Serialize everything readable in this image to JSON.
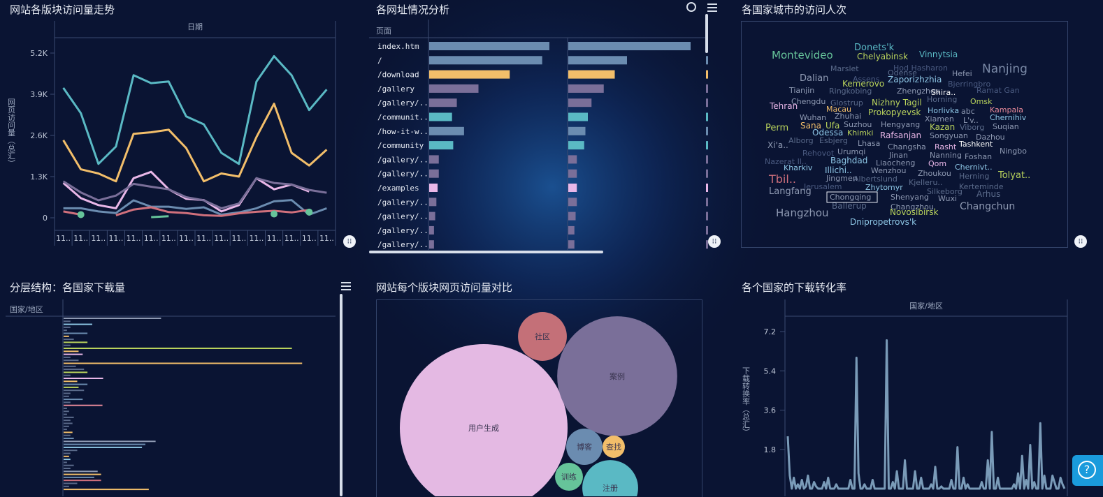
{
  "panels": {
    "trend": {
      "title": "网站各版块访问量走势"
    },
    "urls": {
      "title": "各网址情况分析"
    },
    "cloud": {
      "title": "各国家城市的访问人次"
    },
    "hier": {
      "title": "分层结构：各国家下载量"
    },
    "bubble": {
      "title": "网站每个版块网页访问量对比"
    },
    "conv": {
      "title": "各个国家的下载转化率"
    }
  },
  "chart_data": [
    {
      "id": "trend",
      "type": "line",
      "title": "网站各版块访问量走势",
      "xlabel": "日期",
      "ylabel": "网页访问量（总汇）",
      "yticks": [
        "5.2K",
        "3.9K",
        "2.6K",
        "1.3K",
        "0"
      ],
      "ylim": [
        0,
        5600
      ],
      "x_tick_label": "11..",
      "x_count": 16,
      "series": [
        {
          "color": "#5ab9c4",
          "values": [
            4100,
            3300,
            1700,
            2250,
            4500,
            4250,
            4300,
            3200,
            2950,
            2050,
            1700,
            4300,
            5100,
            4500,
            3400,
            4050
          ]
        },
        {
          "color": "#f2be6a",
          "values": [
            2450,
            1530,
            1400,
            1150,
            2650,
            2700,
            2780,
            2200,
            1150,
            1400,
            1300,
            2550,
            3600,
            2050,
            1650,
            2150
          ]
        },
        {
          "color": "#e9b7e8",
          "values": [
            1100,
            620,
            400,
            300,
            1250,
            1450,
            900,
            600,
            560,
            200,
            400,
            1250,
            900,
            1050,
            830,
            null
          ]
        },
        {
          "color": "#7a6f99",
          "values": [
            1150,
            800,
            550,
            700,
            1070,
            980,
            900,
            650,
            550,
            300,
            450,
            1250,
            1100,
            1050,
            880,
            790
          ]
        },
        {
          "color": "#6b8cb0",
          "values": [
            300,
            300,
            200,
            150,
            550,
            350,
            350,
            280,
            330,
            100,
            170,
            300,
            520,
            560,
            100,
            300
          ]
        },
        {
          "color": "#d0707c",
          "values": [
            200,
            100,
            null,
            80,
            260,
            330,
            180,
            150,
            80,
            60,
            140,
            190,
            220,
            170,
            250,
            null
          ]
        },
        {
          "color": "#66c49a",
          "values": [
            null,
            100,
            null,
            null,
            null,
            20,
            50,
            null,
            50,
            null,
            null,
            null,
            120,
            null,
            180,
            null
          ]
        }
      ]
    },
    {
      "id": "urls",
      "type": "bar",
      "title": "各网址情况分析",
      "column_header": "页面",
      "categories": [
        "index.htm",
        "/",
        "/download",
        "/gallery",
        "/gallery/..",
        "/communit..",
        "/how-it-w..",
        "/community",
        "/gallery/..",
        "/gallery/..",
        "/examples",
        "/gallery/..",
        "/gallery/..",
        "/gallery/..",
        "/gallery/.."
      ],
      "colors": [
        "#6b8cb0",
        "#6b8cb0",
        "#f2be6a",
        "#7a6f99",
        "#7a6f99",
        "#5ab9c4",
        "#6b8cb0",
        "#5ab9c4",
        "#7a6f99",
        "#7a6f99",
        "#e9b7e8",
        "#7a6f99",
        "#7a6f99",
        "#7a6f99",
        "#7a6f99"
      ],
      "series": [
        {
          "values": [
            100,
            94,
            67,
            41,
            23,
            19,
            29,
            20,
            8,
            8,
            7,
            6,
            5,
            4,
            4
          ]
        },
        {
          "values": [
            100,
            48,
            38,
            29,
            19,
            16,
            14,
            13,
            7,
            7,
            7,
            7,
            6,
            5,
            5
          ]
        }
      ]
    },
    {
      "id": "cloud",
      "type": "table",
      "title": "各国家城市的访问人次",
      "words": [
        {
          "t": "Donets'k",
          "c": "#5ab9c4",
          "s": 13
        },
        {
          "t": "Montevideo",
          "c": "#66c49a",
          "s": 15
        },
        {
          "t": "Chelyabinsk",
          "c": "#b9d35c",
          "s": 12
        },
        {
          "t": "Vinnytsia",
          "c": "#5ab9c4",
          "s": 12
        },
        {
          "t": "Marslet",
          "c": "#5a6a8a",
          "s": 11
        },
        {
          "t": "Hod Hasharon",
          "c": "#4a5a80",
          "s": 11
        },
        {
          "t": "Nanjing",
          "c": "#7a89a6",
          "s": 17
        },
        {
          "t": "Dalian",
          "c": "#8e99b2",
          "s": 13
        },
        {
          "t": "Odense",
          "c": "#5a6a8a",
          "s": 11
        },
        {
          "t": "Hefei",
          "c": "#8e99b2",
          "s": 11
        },
        {
          "t": "Assens",
          "c": "#4a5a80",
          "s": 11
        },
        {
          "t": "Zaporizhzhia",
          "c": "#8ec7e6",
          "s": 12
        },
        {
          "t": "Kemerovo",
          "c": "#b9d35c",
          "s": 12
        },
        {
          "t": "Bjerringbro",
          "c": "#4a5a80",
          "s": 11
        },
        {
          "t": "Tianjin",
          "c": "#8e99b2",
          "s": 11
        },
        {
          "t": "Ringkobing",
          "c": "#5a6a8a",
          "s": 11
        },
        {
          "t": "Zhengzhou",
          "c": "#8e99b2",
          "s": 11
        },
        {
          "t": "Shira..",
          "c": "#ffffff",
          "s": 11
        },
        {
          "t": "Ramat Gan",
          "c": "#4a5a80",
          "s": 11
        },
        {
          "t": "Chengdu",
          "c": "#8e99b2",
          "s": 11
        },
        {
          "t": "Glostrup",
          "c": "#5a6a8a",
          "s": 11
        },
        {
          "t": "Nizhny Tagil",
          "c": "#b9d35c",
          "s": 12
        },
        {
          "t": "Horning",
          "c": "#5a6a8a",
          "s": 11
        },
        {
          "t": "Omsk",
          "c": "#b9d35c",
          "s": 11
        },
        {
          "t": "Tehran",
          "c": "#e9b7e8",
          "s": 12
        },
        {
          "t": "Macau",
          "c": "#f2be6a",
          "s": 11
        },
        {
          "t": "Prokopyevsk",
          "c": "#b9d35c",
          "s": 12
        },
        {
          "t": "Horlivka",
          "c": "#8ec7e6",
          "s": 11
        },
        {
          "t": "abc",
          "c": "#8e99b2",
          "s": 11
        },
        {
          "t": "Kampala",
          "c": "#e88a9a",
          "s": 11
        },
        {
          "t": "Wuhan",
          "c": "#8e99b2",
          "s": 11
        },
        {
          "t": "Zhuhai",
          "c": "#8e99b2",
          "s": 11
        },
        {
          "t": "Xiamen",
          "c": "#8e99b2",
          "s": 11
        },
        {
          "t": "L'v..",
          "c": "#8e99b2",
          "s": 11
        },
        {
          "t": "Chernihiv",
          "c": "#8ec7e6",
          "s": 11
        },
        {
          "t": "Perm",
          "c": "#b9d35c",
          "s": 13
        },
        {
          "t": "Sana",
          "c": "#f2be6a",
          "s": 12
        },
        {
          "t": "Ufa",
          "c": "#b9d35c",
          "s": 12
        },
        {
          "t": "Suzhou",
          "c": "#8e99b2",
          "s": 11
        },
        {
          "t": "Hengyang",
          "c": "#8e99b2",
          "s": 11
        },
        {
          "t": "Kazan",
          "c": "#b9d35c",
          "s": 12
        },
        {
          "t": "Viborg",
          "c": "#5a6a8a",
          "s": 11
        },
        {
          "t": "Suqian",
          "c": "#8e99b2",
          "s": 11
        },
        {
          "t": "Odessa",
          "c": "#8ec7e6",
          "s": 12
        },
        {
          "t": "Khimki",
          "c": "#b9d35c",
          "s": 11
        },
        {
          "t": "Rafsanjan",
          "c": "#e9b7e8",
          "s": 12
        },
        {
          "t": "Songyuan",
          "c": "#8e99b2",
          "s": 11
        },
        {
          "t": "Dazhou",
          "c": "#8e99b2",
          "s": 11
        },
        {
          "t": "Alborg",
          "c": "#5a6a8a",
          "s": 11
        },
        {
          "t": "Esbjerg",
          "c": "#5a6a8a",
          "s": 11
        },
        {
          "t": "Lhasa",
          "c": "#8e99b2",
          "s": 11
        },
        {
          "t": "Changsha",
          "c": "#8e99b2",
          "s": 11
        },
        {
          "t": "Rasht",
          "c": "#e9b7e8",
          "s": 11
        },
        {
          "t": "Tashkent",
          "c": "#ffffff",
          "s": 11
        },
        {
          "t": "Xi'a..",
          "c": "#8e99b2",
          "s": 12
        },
        {
          "t": "Rehovot",
          "c": "#4a5a80",
          "s": 11
        },
        {
          "t": "Urumqi",
          "c": "#8e99b2",
          "s": 11
        },
        {
          "t": "Jinan",
          "c": "#8e99b2",
          "s": 11
        },
        {
          "t": "Nanning",
          "c": "#8e99b2",
          "s": 11
        },
        {
          "t": "Foshan",
          "c": "#8e99b2",
          "s": 11
        },
        {
          "t": "Ningbo",
          "c": "#8e99b2",
          "s": 11
        },
        {
          "t": "Nazerat Il..",
          "c": "#4a5a80",
          "s": 11
        },
        {
          "t": "Baghdad",
          "c": "#8ec7e6",
          "s": 12
        },
        {
          "t": "Liaocheng",
          "c": "#8e99b2",
          "s": 11
        },
        {
          "t": "Qom",
          "c": "#e9b7e8",
          "s": 11
        },
        {
          "t": "Kharkiv",
          "c": "#8ec7e6",
          "s": 11
        },
        {
          "t": "Illichi..",
          "c": "#8ec7e6",
          "s": 12
        },
        {
          "t": "Wenzhou",
          "c": "#8e99b2",
          "s": 11
        },
        {
          "t": "Zhoukou",
          "c": "#8e99b2",
          "s": 11
        },
        {
          "t": "Chernivt..",
          "c": "#8ec7e6",
          "s": 11
        },
        {
          "t": "Tolyat..",
          "c": "#b9d35c",
          "s": 13
        },
        {
          "t": "Tbil..",
          "c": "#d0707c",
          "s": 16
        },
        {
          "t": "Jingmen",
          "c": "#8e99b2",
          "s": 11
        },
        {
          "t": "Albertslund",
          "c": "#5a6a8a",
          "s": 11
        },
        {
          "t": "Kjelleru..",
          "c": "#5a6a8a",
          "s": 11
        },
        {
          "t": "Herning",
          "c": "#5a6a8a",
          "s": 11
        },
        {
          "t": "Jerusalem",
          "c": "#4a5a80",
          "s": 11
        },
        {
          "t": "Zhytomyr",
          "c": "#8ec7e6",
          "s": 11
        },
        {
          "t": "Kerteminde",
          "c": "#5a6a8a",
          "s": 11
        },
        {
          "t": "Langfang",
          "c": "#8e99b2",
          "s": 13
        },
        {
          "t": "Silkeborg",
          "c": "#5a6a8a",
          "s": 11
        },
        {
          "t": "Arhus",
          "c": "#5a6a8a",
          "s": 12
        },
        {
          "t": "Chongqing",
          "c": "#8e99b2",
          "s": 11
        },
        {
          "t": "Shenyang",
          "c": "#8e99b2",
          "s": 11
        },
        {
          "t": "Wuxi",
          "c": "#8e99b2",
          "s": 11
        },
        {
          "t": "Ballerup",
          "c": "#5a6a8a",
          "s": 12
        },
        {
          "t": "Changzhou",
          "c": "#8e99b2",
          "s": 11
        },
        {
          "t": "Changchun",
          "c": "#8e99b2",
          "s": 14
        },
        {
          "t": "Hangzhou",
          "c": "#8e99b2",
          "s": 15
        },
        {
          "t": "Novosibirsk",
          "c": "#b9d35c",
          "s": 12
        },
        {
          "t": "Dnipropetrovs'k",
          "c": "#8ec7e6",
          "s": 12
        }
      ]
    },
    {
      "id": "hier",
      "type": "bar",
      "title": "分层结构：各国家下载量",
      "column_header": "国家/地区",
      "xlim": [
        0,
        400
      ],
      "bars": [
        {
          "v": 143,
          "c": "#8e99b2"
        },
        {
          "v": 10,
          "c": "#5a6a8a"
        },
        {
          "v": 42,
          "c": "#8ec7e6"
        },
        {
          "v": 10,
          "c": "#5a6a8a"
        },
        {
          "v": 5,
          "c": "#5a6a8a"
        },
        {
          "v": 35,
          "c": "#6b8cb0"
        },
        {
          "v": 8,
          "c": "#f2be6a"
        },
        {
          "v": 15,
          "c": "#5a6a8a"
        },
        {
          "v": 35,
          "c": "#b9d35c"
        },
        {
          "v": 10,
          "c": "#5a6a8a"
        },
        {
          "v": 335,
          "c": "#b9d35c"
        },
        {
          "v": 22,
          "c": "#f2be6a"
        },
        {
          "v": 28,
          "c": "#e9b7e8"
        },
        {
          "v": 10,
          "c": "#5a6a8a"
        },
        {
          "v": 22,
          "c": "#5a6a8a"
        },
        {
          "v": 350,
          "c": "#f2be6a"
        },
        {
          "v": 18,
          "c": "#5a6a8a"
        },
        {
          "v": 30,
          "c": "#5a6a8a"
        },
        {
          "v": 35,
          "c": "#b9d35c"
        },
        {
          "v": 10,
          "c": "#5a6a8a"
        },
        {
          "v": 58,
          "c": "#e9b7e8"
        },
        {
          "v": 20,
          "c": "#f2be6a"
        },
        {
          "v": 35,
          "c": "#6b8cb0"
        },
        {
          "v": 22,
          "c": "#b9d35c"
        },
        {
          "v": 30,
          "c": "#5a6a8a"
        },
        {
          "v": 10,
          "c": "#5a6a8a"
        },
        {
          "v": 8,
          "c": "#5a6a8a"
        },
        {
          "v": 28,
          "c": "#6b8cb0"
        },
        {
          "v": 10,
          "c": "#5a6a8a"
        },
        {
          "v": 57,
          "c": "#e88a9a"
        },
        {
          "v": 5,
          "c": "#5a6a8a"
        },
        {
          "v": 8,
          "c": "#5a6a8a"
        },
        {
          "v": 5,
          "c": "#5a6a8a"
        },
        {
          "v": 15,
          "c": "#5a6a8a"
        },
        {
          "v": 10,
          "c": "#5a6a8a"
        },
        {
          "v": 13,
          "c": "#5a6a8a"
        },
        {
          "v": 8,
          "c": "#5a6a8a"
        },
        {
          "v": 5,
          "c": "#5a6a8a"
        },
        {
          "v": 13,
          "c": "#f2be6a"
        },
        {
          "v": 10,
          "c": "#5a6a8a"
        },
        {
          "v": 15,
          "c": "#6b8cb0"
        },
        {
          "v": 135,
          "c": "#8e99b2"
        },
        {
          "v": 120,
          "c": "#6b8cb0"
        },
        {
          "v": 115,
          "c": "#8ec7e6"
        },
        {
          "v": 20,
          "c": "#5a6a8a"
        },
        {
          "v": 10,
          "c": "#5a6a8a"
        },
        {
          "v": 8,
          "c": "#f2be6a"
        },
        {
          "v": 10,
          "c": "#8ec7e6"
        },
        {
          "v": 5,
          "c": "#5a6a8a"
        },
        {
          "v": 15,
          "c": "#5a6a8a"
        },
        {
          "v": 10,
          "c": "#5a6a8a"
        },
        {
          "v": 50,
          "c": "#8e99b2"
        },
        {
          "v": 55,
          "c": "#f2be6a"
        },
        {
          "v": 45,
          "c": "#6b8cb0"
        },
        {
          "v": 55,
          "c": "#d0707c"
        },
        {
          "v": 20,
          "c": "#5a6a8a"
        },
        {
          "v": 8,
          "c": "#5a6a8a"
        },
        {
          "v": 125,
          "c": "#f2be6a"
        }
      ]
    },
    {
      "id": "bubble",
      "type": "scatter",
      "title": "网站每个版块网页访问量对比",
      "bubbles": [
        {
          "label": "用户生成",
          "value": 14450,
          "color": "#e4b9e3"
        },
        {
          "label": "案例",
          "value": 7400,
          "color": "#7a6f99"
        },
        {
          "label": "社区",
          "value": 1225,
          "color": "#c47078"
        },
        {
          "label": "博客",
          "value": 676,
          "color": "#6b8cb0"
        },
        {
          "label": "查找",
          "value": 256,
          "color": "#f2be6a"
        },
        {
          "label": "训练",
          "value": 400,
          "color": "#66c49a"
        },
        {
          "label": "注册",
          "value": 1600,
          "color": "#5ab9c4"
        }
      ]
    },
    {
      "id": "conv",
      "type": "line",
      "title": "各个国家的下载转化率",
      "xlabel": "国家/地区",
      "ylabel": "下载转换率（总汇）",
      "yticks": [
        "7.2",
        "5.4",
        "3.6",
        "1.8"
      ],
      "ylim": [
        0,
        7.8
      ],
      "color": "#7a9bb8",
      "values": [
        2.4,
        0.6,
        0,
        0.5,
        0,
        0.2,
        0,
        0.4,
        0,
        0.1,
        0.6,
        0,
        0,
        0.3,
        0.1,
        0,
        0,
        0,
        0.3,
        0,
        0.5,
        0,
        0,
        0,
        0.2,
        0,
        0,
        0,
        0,
        0,
        0,
        0.4,
        0,
        0,
        6.0,
        0.7,
        0,
        0,
        0.2,
        0,
        0,
        0,
        0.4,
        0,
        0,
        0,
        0,
        0,
        0,
        6.8,
        0,
        0,
        0.3,
        0,
        0.8,
        0,
        0,
        0,
        1.3,
        0,
        0,
        0,
        0,
        0.8,
        0,
        0,
        0.5,
        0,
        0,
        0,
        0,
        0.2,
        0,
        1.0,
        0,
        0,
        0.1,
        0,
        0,
        0,
        0,
        0.4,
        0,
        0,
        1.9,
        0,
        0,
        0.5,
        0,
        0.2,
        0,
        0,
        0,
        0,
        0,
        0,
        0.3,
        0,
        0,
        1.3,
        0,
        2.6,
        0,
        0,
        0.5,
        0,
        0,
        0,
        0,
        0,
        0,
        0,
        0.2,
        0,
        0.7,
        0,
        1.5,
        0,
        0.4,
        0,
        2.0,
        0,
        0.3,
        0,
        0,
        3.0,
        0,
        0.6,
        0,
        0,
        0,
        0.6,
        0.3,
        0,
        0,
        0.5,
        0.2,
        0
      ]
    }
  ]
}
